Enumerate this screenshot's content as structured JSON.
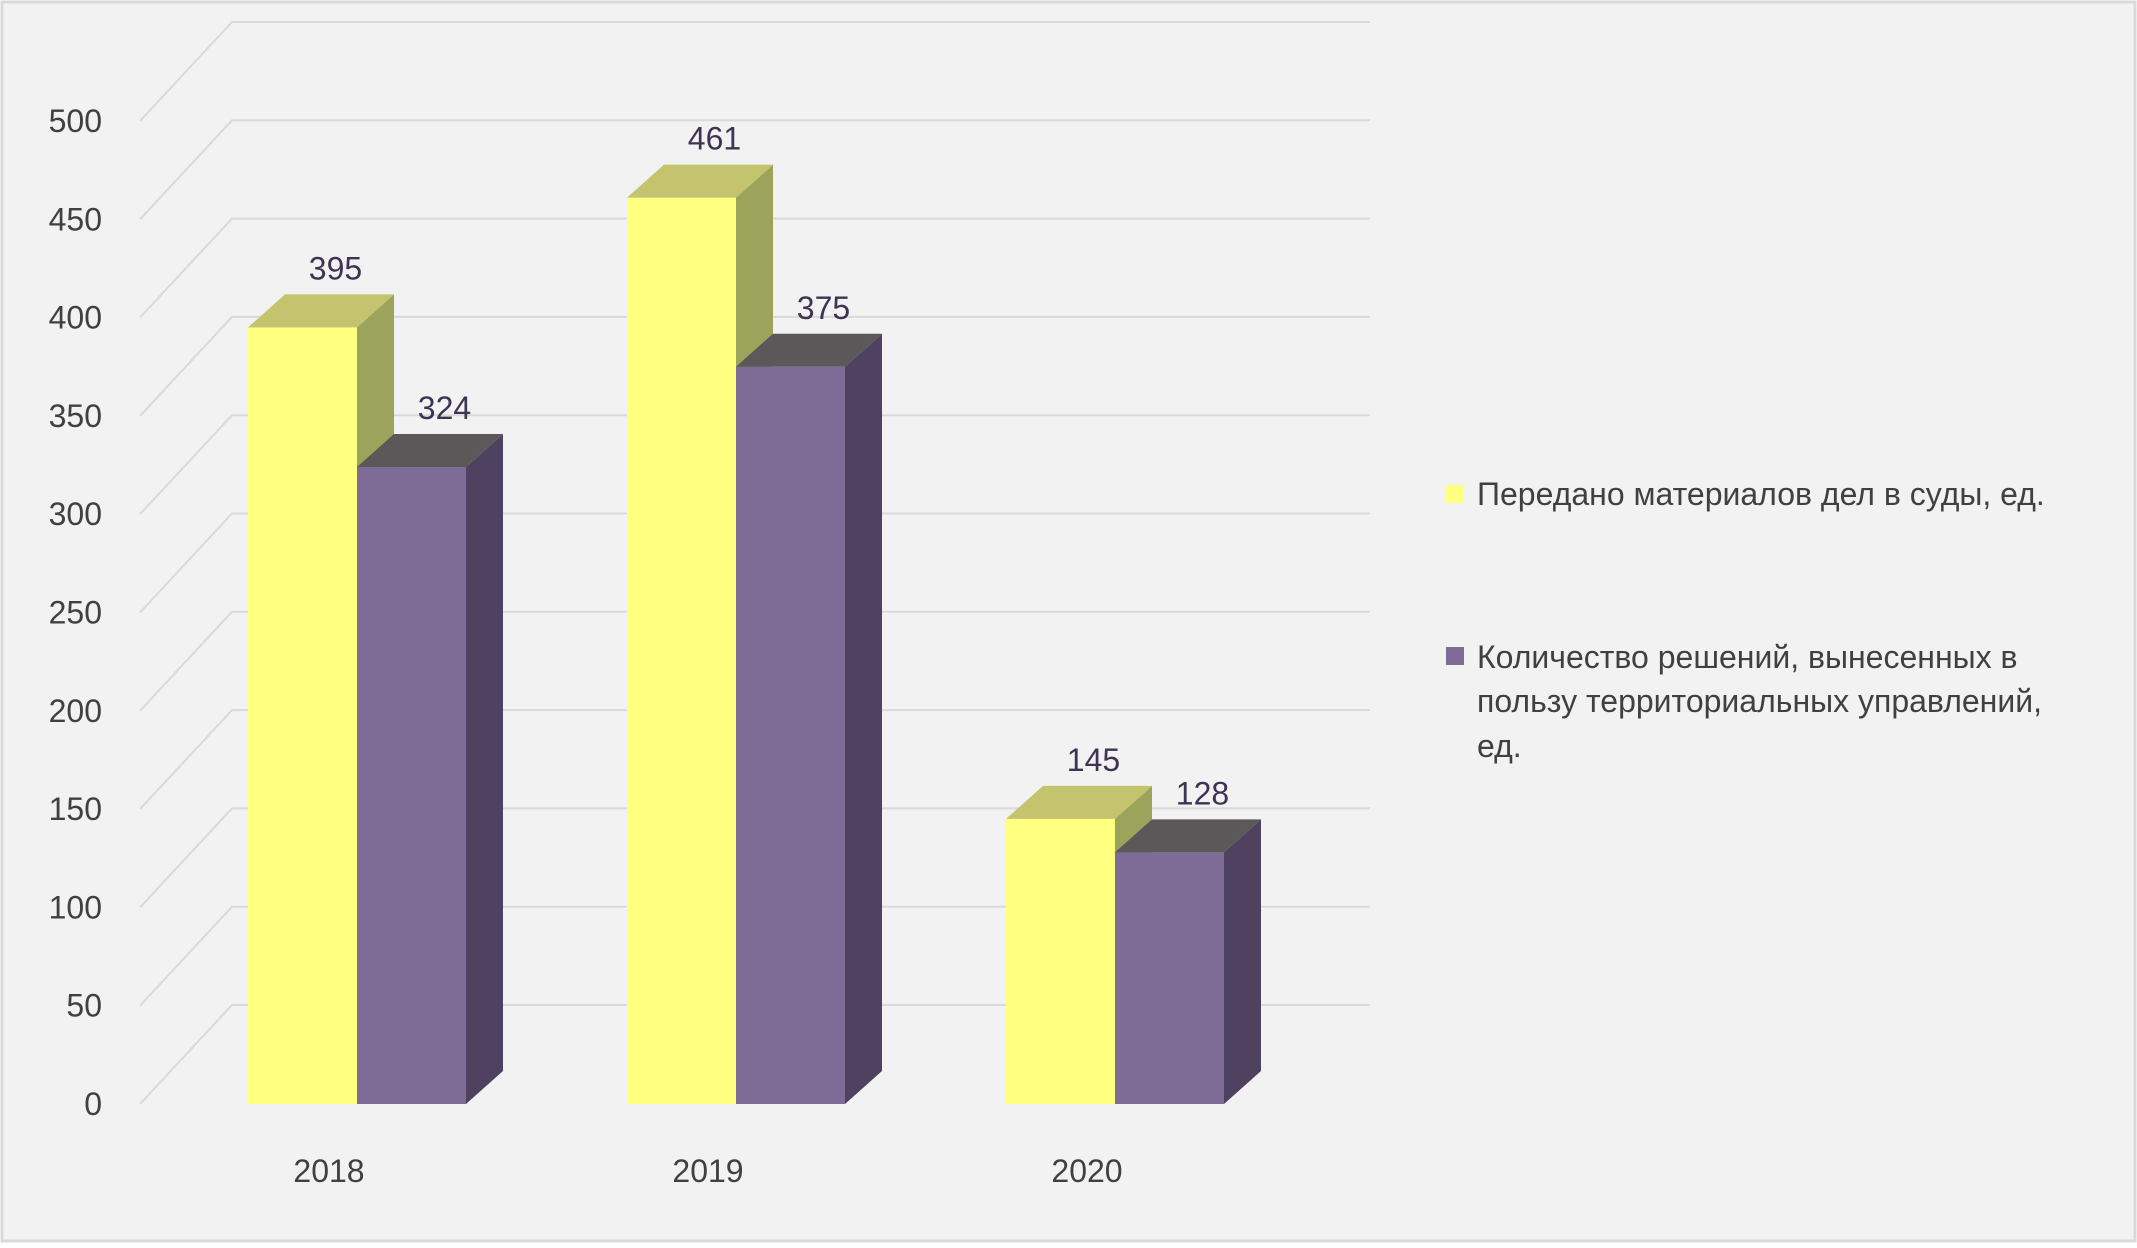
{
  "chart_data": {
    "type": "bar",
    "title": "",
    "xlabel": "",
    "ylabel": "",
    "categories": [
      "2018",
      "2019",
      "2020"
    ],
    "ylim": [
      0,
      500
    ],
    "yticks": [
      "0",
      "50",
      "100",
      "150",
      "200",
      "250",
      "300",
      "350",
      "400",
      "450",
      "500"
    ],
    "grid": true,
    "legend_position": "right",
    "series": [
      {
        "name": "Передано материалов дел в суды, ед.",
        "values": [
          395,
          461,
          145
        ],
        "labels": [
          "395",
          "461",
          "145"
        ],
        "color": "#FFFF80",
        "side_color": "#9CA35B",
        "top_color": "#C4C36E"
      },
      {
        "name": "Количество решений, вынесенных в пользу территориальных управлений, ед.",
        "legend_lines": [
          "Количество решений, вынесенных в",
          "пользу территориальных управлений,",
          "ед."
        ],
        "values": [
          324,
          375,
          128
        ],
        "labels": [
          "324",
          "375",
          "128"
        ],
        "color": "#7E6B96",
        "side_color": "#4F4260",
        "top_color": "#5A5858"
      }
    ]
  },
  "colors": {
    "background": "#F2F2F2",
    "border": "#D9D9D9",
    "gridline": "#D9D9D9",
    "axis_text": "#404040",
    "value_label": "#3D3353"
  }
}
